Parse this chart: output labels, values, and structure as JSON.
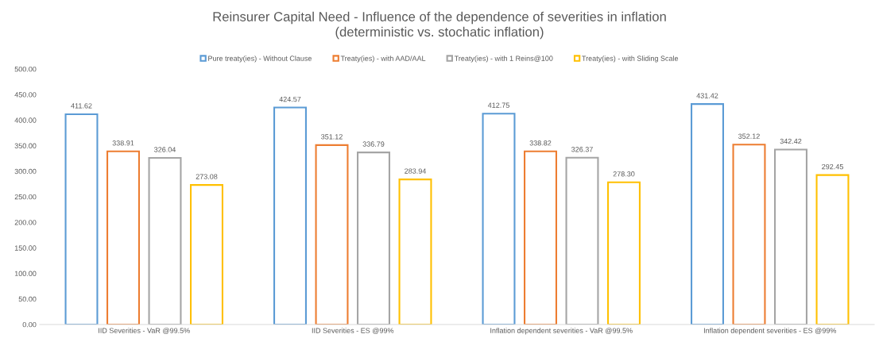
{
  "chart_data": {
    "type": "bar",
    "title": "Reinsurer Capital Need - Influence of the dependence of severities in inflation\n(deterministic vs. stochatic inflation)",
    "categories": [
      "IID Severities - VaR @99.5%",
      "IID Severities - ES @99%",
      "Inflation dependent severities - VaR @99.5%",
      "Inflation dependent severities - ES @99%"
    ],
    "series": [
      {
        "name": "Pure treaty(ies) - Without Clause",
        "color": "#5b9bd5",
        "values": [
          411.62,
          424.57,
          412.75,
          431.42
        ],
        "value_labels": [
          "411.62",
          "424.57",
          "412.75",
          "431.42"
        ]
      },
      {
        "name": "Treaty(ies) - with AAD/AAL",
        "color": "#ed7d31",
        "values": [
          338.91,
          351.12,
          338.82,
          352.12
        ],
        "value_labels": [
          "338.91",
          "351.12",
          "338.82",
          "352.12"
        ]
      },
      {
        "name": "Treaty(ies) - with 1 Reins@100",
        "color": "#a5a5a5",
        "values": [
          326.04,
          336.79,
          326.37,
          342.42
        ],
        "value_labels": [
          "326.04",
          "336.79",
          "326.37",
          "342.42"
        ]
      },
      {
        "name": "Treaty(ies) - with Sliding Scale",
        "color": "#ffc000",
        "values": [
          273.08,
          283.94,
          278.3,
          292.45
        ],
        "value_labels": [
          "273.08",
          "283.94",
          "278.30",
          "292.45"
        ]
      }
    ],
    "ylim": [
      0,
      500
    ],
    "yticks": [
      {
        "value": 0,
        "label": "0.00"
      },
      {
        "value": 50,
        "label": "50.00"
      },
      {
        "value": 100,
        "label": "100.00"
      },
      {
        "value": 150,
        "label": "150.00"
      },
      {
        "value": 200,
        "label": "200.00"
      },
      {
        "value": 250,
        "label": "250.00"
      },
      {
        "value": 300,
        "label": "300.00"
      },
      {
        "value": 350,
        "label": "350.00"
      },
      {
        "value": 400,
        "label": "400.00"
      },
      {
        "value": 450,
        "label": "450.00"
      },
      {
        "value": 500,
        "label": "500.00"
      }
    ],
    "legend": "top"
  }
}
